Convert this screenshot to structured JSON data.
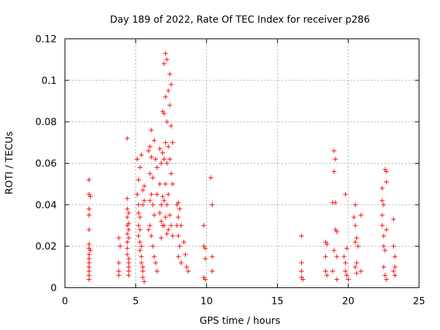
{
  "chart_data": {
    "type": "scatter",
    "title": "Day 189 of 2022, Rate Of TEC Index for receiver p286",
    "xlabel": "GPS time / hours",
    "ylabel": "ROTI / TECUs",
    "xlim": [
      0,
      25
    ],
    "ylim": [
      0,
      0.12
    ],
    "xticks": [
      0,
      5,
      10,
      15,
      20,
      25
    ],
    "xtick_labels": [
      "0",
      "5",
      "10",
      "15",
      "20",
      "25"
    ],
    "yticks": [
      0,
      0.02,
      0.04,
      0.06,
      0.08,
      0.1,
      0.12
    ],
    "ytick_labels": [
      "0",
      "0.02",
      "0.04",
      "0.06",
      "0.08",
      "0.1",
      "0.12"
    ],
    "grid": true,
    "marker": "+",
    "color": "#ff0000",
    "series": [
      {
        "x": [
          1.7,
          1.7,
          1.7,
          1.7,
          1.7,
          1.7,
          1.7,
          1.7,
          1.7,
          1.7,
          1.7,
          1.7,
          1.7,
          1.7,
          1.8,
          1.8,
          3.8,
          3.8,
          3.8,
          3.8,
          3.9,
          4.4,
          4.4,
          4.4,
          4.4,
          4.4,
          4.4,
          4.4,
          4.4,
          4.4,
          4.5,
          4.5,
          4.5,
          4.5,
          4.5,
          4.5,
          4.5,
          4.5,
          4.5,
          5.1,
          5.1,
          5.2,
          5.2,
          5.2,
          5.2,
          5.2,
          5.3,
          5.3,
          5.3,
          5.3,
          5.3,
          5.4,
          5.4,
          5.4,
          5.4,
          5.5,
          5.5,
          5.5,
          5.5,
          5.5,
          5.6,
          5.6,
          5.6,
          5.9,
          5.9,
          6.0,
          6.0,
          6.0,
          6.0,
          6.1,
          6.1,
          6.1,
          6.1,
          6.2,
          6.2,
          6.2,
          6.3,
          6.3,
          6.3,
          6.4,
          6.4,
          6.5,
          6.5,
          6.5,
          6.7,
          6.7,
          6.7,
          6.8,
          6.8,
          6.8,
          6.8,
          6.9,
          6.9,
          6.9,
          6.9,
          7.0,
          7.0,
          7.0,
          7.0,
          7.0,
          7.1,
          7.1,
          7.1,
          7.1,
          7.1,
          7.2,
          7.2,
          7.2,
          7.2,
          7.2,
          7.3,
          7.3,
          7.3,
          7.3,
          7.4,
          7.4,
          7.4,
          7.4,
          7.5,
          7.5,
          7.5,
          7.5,
          7.6,
          7.6,
          7.6,
          7.9,
          7.9,
          8.0,
          8.0,
          8.0,
          8.0,
          8.1,
          8.1,
          8.2,
          8.2,
          8.4,
          8.5,
          8.6,
          8.7,
          9.8,
          9.8,
          9.8,
          9.9,
          9.9,
          9.9,
          10.3,
          10.4,
          10.4,
          10.4,
          16.7,
          16.7,
          16.7,
          16.7,
          16.8,
          18.4,
          18.4,
          18.4,
          18.5,
          18.5,
          18.9,
          18.9,
          19.0,
          19.0,
          19.0,
          19.1,
          19.1,
          19.1,
          19.2,
          19.2,
          19.2,
          19.7,
          19.8,
          19.8,
          19.8,
          19.9,
          19.9,
          20.0,
          20.4,
          20.5,
          20.5,
          20.5,
          20.5,
          20.6,
          20.6,
          20.6,
          20.7,
          20.9,
          20.9,
          22.4,
          22.4,
          22.4,
          22.4,
          22.5,
          22.5,
          22.5,
          22.5,
          22.6,
          22.6,
          22.6,
          22.7,
          22.7,
          22.7,
          22.7,
          23.2,
          23.2,
          23.2,
          23.3,
          23.3,
          23.3
        ],
        "y": [
          0.052,
          0.045,
          0.038,
          0.035,
          0.028,
          0.021,
          0.019,
          0.016,
          0.014,
          0.012,
          0.01,
          0.008,
          0.006,
          0.004,
          0.044,
          0.018,
          0.024,
          0.012,
          0.008,
          0.006,
          0.02,
          0.072,
          0.043,
          0.038,
          0.034,
          0.03,
          0.026,
          0.022,
          0.019,
          0.016,
          0.014,
          0.012,
          0.01,
          0.008,
          0.006,
          0.036,
          0.031,
          0.028,
          0.024,
          0.062,
          0.045,
          0.052,
          0.04,
          0.036,
          0.03,
          0.025,
          0.058,
          0.034,
          0.028,
          0.022,
          0.018,
          0.064,
          0.02,
          0.015,
          0.012,
          0.047,
          0.04,
          0.01,
          0.008,
          0.005,
          0.049,
          0.042,
          0.003,
          0.066,
          0.028,
          0.068,
          0.055,
          0.042,
          0.03,
          0.076,
          0.063,
          0.045,
          0.025,
          0.053,
          0.04,
          0.02,
          0.071,
          0.035,
          0.015,
          0.062,
          0.012,
          0.058,
          0.045,
          0.008,
          0.067,
          0.05,
          0.036,
          0.06,
          0.04,
          0.032,
          0.024,
          0.085,
          0.065,
          0.044,
          0.03,
          0.108,
          0.084,
          0.062,
          0.042,
          0.03,
          0.113,
          0.092,
          0.07,
          0.05,
          0.034,
          0.11,
          0.08,
          0.06,
          0.04,
          0.026,
          0.095,
          0.068,
          0.045,
          0.028,
          0.103,
          0.088,
          0.062,
          0.035,
          0.098,
          0.078,
          0.055,
          0.03,
          0.07,
          0.05,
          0.025,
          0.04,
          0.03,
          0.041,
          0.034,
          0.025,
          0.015,
          0.038,
          0.02,
          0.03,
          0.012,
          0.022,
          0.016,
          0.01,
          0.008,
          0.03,
          0.02,
          0.005,
          0.019,
          0.014,
          0.004,
          0.053,
          0.04,
          0.015,
          0.008,
          0.025,
          0.012,
          0.008,
          0.005,
          0.004,
          0.022,
          0.015,
          0.008,
          0.021,
          0.006,
          0.041,
          0.008,
          0.066,
          0.056,
          0.018,
          0.062,
          0.041,
          0.028,
          0.027,
          0.015,
          0.004,
          0.015,
          0.045,
          0.012,
          0.008,
          0.019,
          0.006,
          0.004,
          0.034,
          0.04,
          0.03,
          0.022,
          0.01,
          0.024,
          0.012,
          0.007,
          0.02,
          0.035,
          0.008,
          0.048,
          0.042,
          0.035,
          0.03,
          0.04,
          0.025,
          0.02,
          0.01,
          0.057,
          0.018,
          0.006,
          0.056,
          0.051,
          0.028,
          0.004,
          0.033,
          0.02,
          0.008,
          0.015,
          0.01,
          0.006
        ]
      }
    ]
  }
}
